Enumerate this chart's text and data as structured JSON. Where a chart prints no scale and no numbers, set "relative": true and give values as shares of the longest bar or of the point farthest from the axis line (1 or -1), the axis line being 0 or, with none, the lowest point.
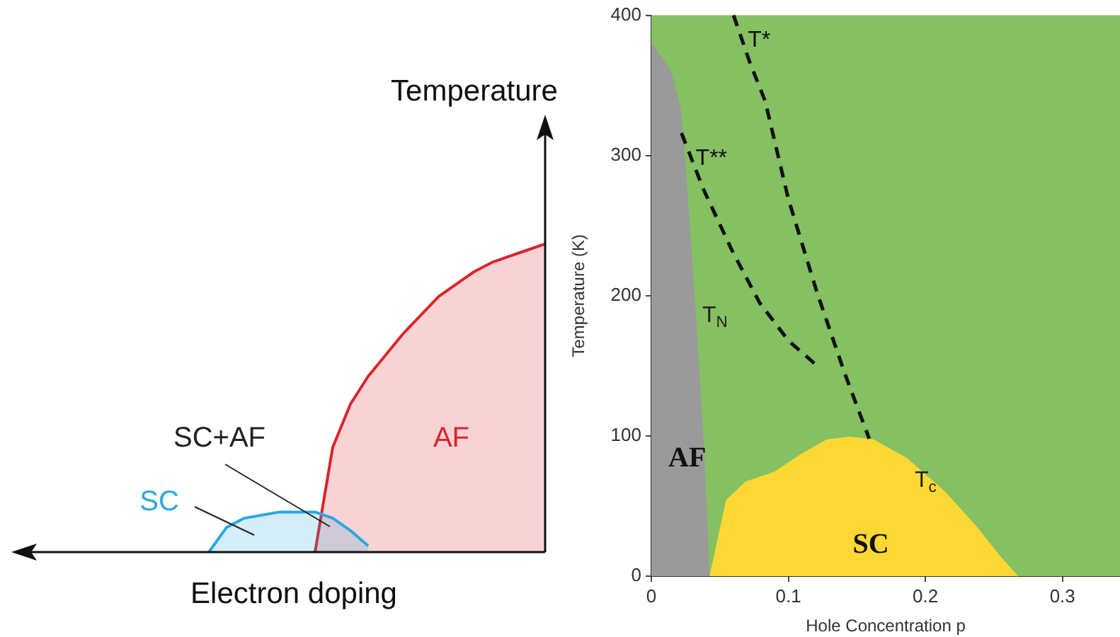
{
  "chart_data": [
    {
      "type": "area",
      "relative": true,
      "xlabel": "Electron doping",
      "ylabel": "Temperature",
      "categories": [
        null,
        null,
        null,
        null,
        null,
        null,
        null,
        null,
        null,
        null,
        null,
        null,
        null,
        null,
        null,
        null,
        null,
        null,
        null,
        null,
        null,
        null,
        null,
        null,
        null,
        null,
        null,
        null,
        null,
        null,
        null
      ],
      "series": [
        {
          "name": "AF",
          "color": "#d9252b",
          "values": [
            null,
            null,
            null,
            null,
            null,
            null,
            null,
            null,
            null,
            null,
            null,
            null,
            null,
            null,
            null,
            null,
            null,
            0,
            0.34,
            0.48,
            0.57,
            0.64,
            0.71,
            0.77,
            0.83,
            0.87,
            0.91,
            0.94,
            0.96,
            0.98,
            1
          ]
        },
        {
          "name": "SC",
          "color": "#2aa7e2",
          "values": [
            null,
            null,
            null,
            null,
            null,
            null,
            null,
            null,
            null,
            null,
            null,
            0,
            0.08,
            0.11,
            0.12,
            0.13,
            0.13,
            0.13,
            0.11,
            0.07,
            0.02,
            null,
            null,
            null,
            null,
            null,
            null,
            null,
            null,
            null,
            null
          ]
        }
      ],
      "annotations": [
        "SC+AF"
      ]
    },
    {
      "type": "area",
      "xlabel": "Hole Concentration p",
      "ylabel": "Temperature (K)",
      "xlim": [
        0,
        0.342
      ],
      "xticks": [
        0,
        0.1,
        0.2,
        0.3
      ],
      "ylim": [
        0,
        400
      ],
      "yticks": [
        0,
        100,
        200,
        300,
        400
      ],
      "bands": [
        {
          "axis": "x",
          "from": 0,
          "to": 0.342,
          "color": "#85c062"
        }
      ],
      "series": [
        {
          "name": "AF",
          "color": "#9a9a9a",
          "x": [
            0,
            0.014,
            0.021,
            0.024,
            0.031,
            0.038,
            0.042
          ],
          "values": [
            380,
            360,
            333,
            300,
            202,
            91,
            0
          ]
        },
        {
          "name": "SC",
          "color": "#fdd835",
          "x": [
            0.043,
            0.055,
            0.069,
            0.09,
            0.11,
            0.128,
            0.145,
            0.162,
            0.186,
            0.214,
            0.238,
            0.255,
            0.267
          ],
          "values": [
            0,
            54,
            67,
            74,
            87,
            97,
            99,
            97,
            84,
            60,
            34,
            13,
            0
          ]
        },
        {
          "name": "T**",
          "type": "line",
          "line_style": "dashed",
          "color": "#111111",
          "x": [
            0.022,
            0.038,
            0.059,
            0.079,
            0.1,
            0.121
          ],
          "values": [
            316,
            276,
            232,
            195,
            168,
            150
          ]
        },
        {
          "name": "T*",
          "type": "line",
          "line_style": "dashed",
          "color": "#111111",
          "x": [
            0.06,
            0.072,
            0.083,
            0.1,
            0.121,
            0.141,
            0.159
          ],
          "values": [
            400,
            366,
            339,
            269,
            202,
            145,
            98
          ]
        }
      ],
      "annotations": [
        {
          "text": "T$_{N}$",
          "x": 0.031,
          "y": 202
        },
        {
          "text": "T$_{c}$",
          "x": 0.186,
          "y": 84
        }
      ],
      "grid": false,
      "legend": false,
      "marker": "none"
    }
  ]
}
